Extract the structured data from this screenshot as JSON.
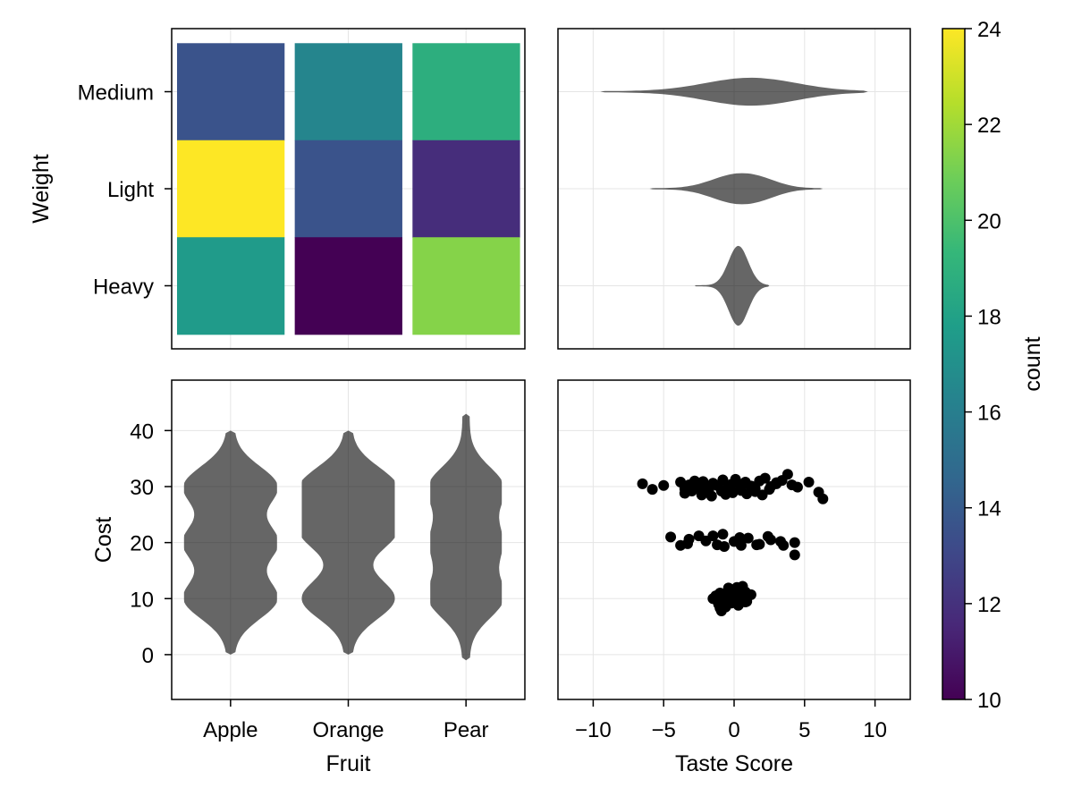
{
  "chart_data": [
    {
      "type": "heatmap",
      "panel": "top-left",
      "x_categories": [
        "Apple",
        "Orange",
        "Pear"
      ],
      "y_categories": [
        "Heavy",
        "Light",
        "Medium"
      ],
      "values": [
        {
          "x": "Apple",
          "y": "Medium",
          "value": 13.6
        },
        {
          "x": "Orange",
          "y": "Medium",
          "value": 16.4
        },
        {
          "x": "Pear",
          "y": "Medium",
          "value": 18.8
        },
        {
          "x": "Apple",
          "y": "Light",
          "value": 24
        },
        {
          "x": "Orange",
          "y": "Light",
          "value": 13.6
        },
        {
          "x": "Pear",
          "y": "Light",
          "value": 11.8
        },
        {
          "x": "Apple",
          "y": "Heavy",
          "value": 17.6
        },
        {
          "x": "Orange",
          "y": "Heavy",
          "value": 10
        },
        {
          "x": "Pear",
          "y": "Heavy",
          "value": 21.4
        }
      ],
      "ylabel": "Weight",
      "grid": true
    },
    {
      "type": "violin",
      "orientation": "horizontal",
      "panel": "top-right",
      "categories": [
        "Heavy",
        "Light",
        "Medium"
      ],
      "series": [
        {
          "category": "Medium",
          "min": -9.5,
          "max": 9.5,
          "peak": 1.2
        },
        {
          "category": "Light",
          "min": -6,
          "max": 6.3,
          "peak": 0
        },
        {
          "category": "Heavy",
          "min": -2.8,
          "max": 2.5,
          "peak": 0.3
        }
      ],
      "xlim": [
        -12.5,
        12.5
      ],
      "grid": true
    },
    {
      "type": "violin",
      "orientation": "vertical",
      "panel": "bottom-left",
      "categories": [
        "Apple",
        "Orange",
        "Pear"
      ],
      "series": [
        {
          "category": "Apple",
          "min": 0,
          "max": 40,
          "modes": [
            10,
            20,
            30
          ]
        },
        {
          "category": "Orange",
          "min": 0,
          "max": 40,
          "modes": [
            10,
            22,
            30
          ]
        },
        {
          "category": "Pear",
          "min": -1,
          "max": 43,
          "modes": [
            10,
            20,
            30
          ]
        }
      ],
      "xlabel": "Fruit",
      "ylabel": "Cost",
      "yticks": [
        0,
        10,
        20,
        30,
        40
      ],
      "ylim": [
        -8,
        49
      ],
      "grid": true
    },
    {
      "type": "scatter",
      "panel": "bottom-right",
      "xlabel": "Taste Score",
      "xticks": [
        -10,
        -5,
        0,
        5,
        10
      ],
      "xlim": [
        -12.5,
        12.5
      ],
      "ylim": [
        -8,
        49
      ],
      "grid": true,
      "x": [
        -6.5,
        -5.8,
        -5,
        -3.8,
        -3.5,
        -3.2,
        -2.8,
        -2.5,
        -2.2,
        -1.8,
        -1.5,
        -0.8,
        -0.5,
        -0.2,
        0.1,
        0.5,
        0.8,
        1.2,
        1.5,
        1.8,
        2.2,
        2.6,
        3,
        3.4,
        3.8,
        4.1,
        4.5,
        5.3,
        6,
        6.3,
        -3.5,
        -3,
        -2.7,
        -2.3,
        -1.8,
        -1.6,
        -1.2,
        -0.9,
        -0.6,
        -0.4,
        -0.1,
        0.2,
        0.5,
        0.9,
        1.3,
        1.5,
        2,
        2.5,
        3,
        -4.5,
        -3.3,
        -2.5,
        -2,
        -1.2,
        -0.8,
        0,
        0.5,
        1,
        1.8,
        2.6,
        3.5,
        4.3,
        4.3,
        -3.8,
        -3.2,
        -1.5,
        -0.7,
        0.4,
        1.6,
        2.4,
        3.3,
        -1.3,
        -1,
        -0.7,
        -0.4,
        -0.1,
        0.2,
        0.5,
        0.8,
        -1.5,
        -1.2,
        -0.9,
        -0.6,
        -0.3,
        0,
        0.3,
        0.6,
        0.9,
        1.2,
        -1.1,
        -0.8,
        -0.5,
        -0.2,
        0.1,
        0.4,
        0.7,
        -1,
        -0.7,
        -0.4,
        -0.1,
        0.2,
        0.5,
        0.8,
        -0.9,
        -0.6,
        -0.3,
        0,
        0.3,
        0.6
      ],
      "y": [
        30.5,
        29.5,
        30.2,
        30.8,
        29.6,
        30.3,
        31,
        29.8,
        30.9,
        29.4,
        30.6,
        31.2,
        29.7,
        30.4,
        31.3,
        29.5,
        30.8,
        30.1,
        29.6,
        31,
        31.5,
        30,
        30.7,
        31.1,
        32.2,
        30.3,
        29.9,
        30.8,
        29,
        27.8,
        28.8,
        29.2,
        30,
        28.5,
        29.5,
        28.3,
        30.2,
        29.2,
        28.6,
        29.8,
        28.9,
        30.6,
        29.3,
        28.7,
        30,
        29.1,
        28.5,
        29.5,
        30.5,
        21,
        19.8,
        21.2,
        20.3,
        19.6,
        21.5,
        20.2,
        19.5,
        20.8,
        19.7,
        20.5,
        19.5,
        20,
        17.8,
        19.5,
        20.6,
        21.2,
        19.3,
        20.9,
        19.6,
        21.1,
        20.2,
        10.5,
        11,
        10.2,
        11.5,
        10.8,
        11.8,
        10.3,
        11.2,
        10,
        9.6,
        10.6,
        9.3,
        10.9,
        9.8,
        11.6,
        10.4,
        9.5,
        10.7,
        9,
        9.8,
        10.4,
        9.2,
        10.1,
        9.5,
        11,
        8.3,
        8.9,
        11.9,
        9.7,
        12,
        10.1,
        9.4,
        7.8,
        8.5,
        10.2,
        11.1,
        8.8,
        12.2
      ]
    },
    {
      "type": "colorbar",
      "label": "count",
      "ticks": [
        10,
        12,
        14,
        16,
        18,
        20,
        22,
        24
      ],
      "range": [
        10,
        24
      ],
      "colormap": "viridis"
    }
  ]
}
